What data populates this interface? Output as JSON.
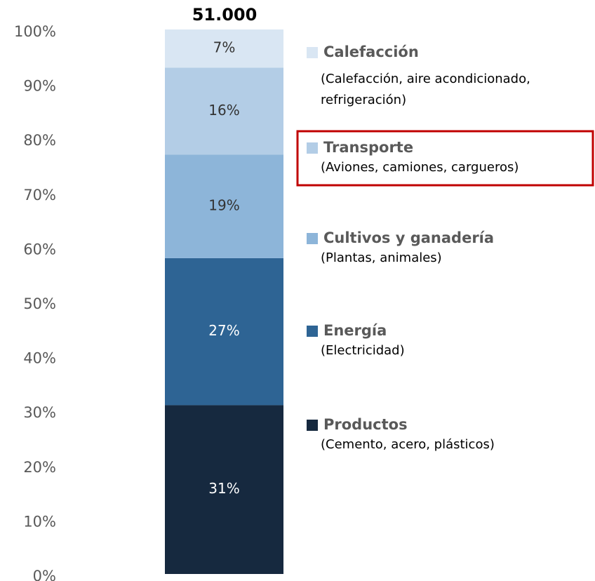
{
  "chart_data": {
    "type": "stacked_bar",
    "top_label": "51.000",
    "ylim": [
      0,
      100
    ],
    "yticks": [
      {
        "value": 0,
        "label": "0%"
      },
      {
        "value": 10,
        "label": "10%"
      },
      {
        "value": 20,
        "label": "20%"
      },
      {
        "value": 30,
        "label": "30%"
      },
      {
        "value": 40,
        "label": "40%"
      },
      {
        "value": 50,
        "label": "50%"
      },
      {
        "value": 60,
        "label": "60%"
      },
      {
        "value": 70,
        "label": "70%"
      },
      {
        "value": 80,
        "label": "80%"
      },
      {
        "value": 90,
        "label": "90%"
      },
      {
        "value": 100,
        "label": "100%"
      }
    ],
    "highlight_series": 3,
    "series": [
      {
        "name": "Productos",
        "description": [
          "(Cemento, acero, plásticos)"
        ],
        "color": "#16293f",
        "label_color": "#ffffff",
        "values": [
          31
        ],
        "value_labels": [
          "31%"
        ]
      },
      {
        "name": "Energía",
        "description": [
          "(Electricidad)"
        ],
        "color": "#2e6494",
        "label_color": "#ffffff",
        "values": [
          27
        ],
        "value_labels": [
          "27%"
        ]
      },
      {
        "name": "Cultivos y ganadería",
        "description": [
          "(Plantas, animales)"
        ],
        "color": "#8db5d9",
        "label_color": "#333333",
        "values": [
          19
        ],
        "value_labels": [
          "19%"
        ]
      },
      {
        "name": "Transporte",
        "description": [
          "(Aviones, camiones, cargueros)"
        ],
        "color": "#b3cde6",
        "label_color": "#333333",
        "values": [
          16
        ],
        "value_labels": [
          "16%"
        ]
      },
      {
        "name": "Calefacción",
        "description": [
          "(Calefacción, aire acondicionado,",
          "refrigeración)"
        ],
        "color": "#d9e6f3",
        "label_color": "#333333",
        "values": [
          7
        ],
        "value_labels": [
          "7%"
        ]
      }
    ]
  }
}
